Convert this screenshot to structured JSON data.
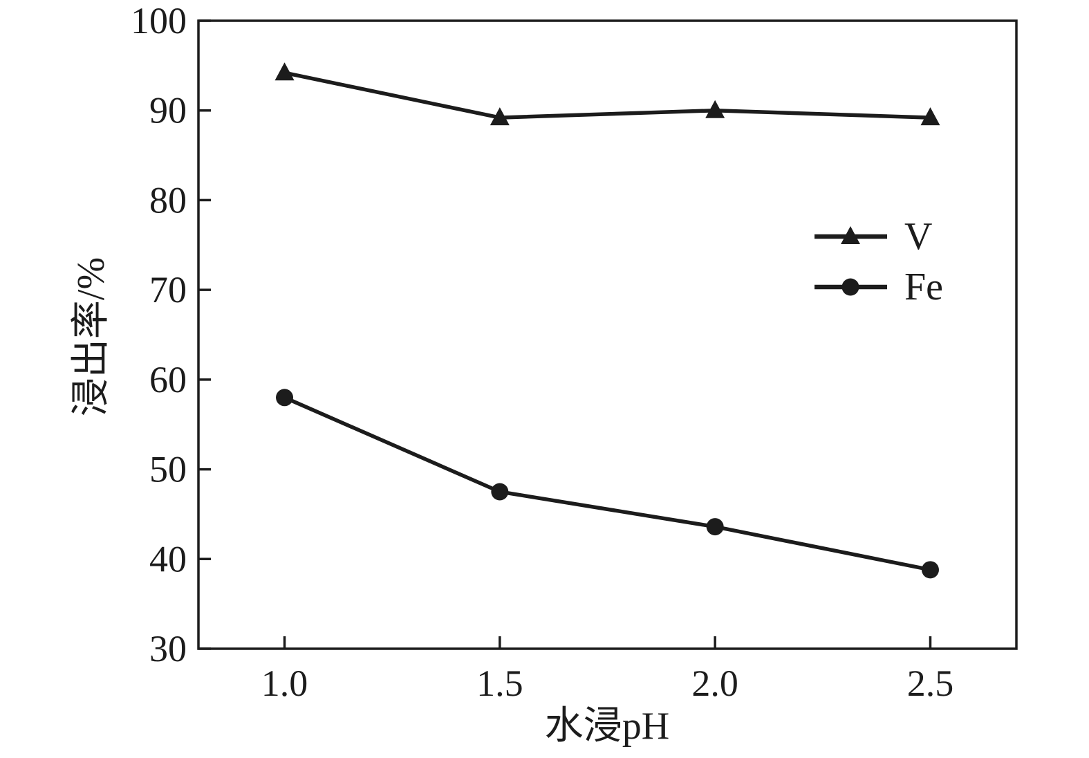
{
  "figure": {
    "background": "#ffffff",
    "ink": "#1c1c1c"
  },
  "chart_data": {
    "type": "line",
    "title": "",
    "xlabel": "水浸pH",
    "ylabel": "浸出率/%",
    "x": [
      1.0,
      1.5,
      2.0,
      2.5
    ],
    "series": [
      {
        "name": "V",
        "marker": "triangle",
        "values": [
          94.2,
          89.2,
          90.0,
          89.2
        ]
      },
      {
        "name": "Fe",
        "marker": "circle",
        "values": [
          58.0,
          47.5,
          43.6,
          38.8
        ]
      }
    ],
    "xlim": [
      0.8,
      2.7
    ],
    "ylim": [
      30,
      100
    ],
    "xtick_values": [
      1.0,
      1.5,
      2.0,
      2.5
    ],
    "xtick_labels": [
      "1.0",
      "1.5",
      "2.0",
      "2.5"
    ],
    "ytick_values": [
      30,
      40,
      50,
      60,
      70,
      80,
      90,
      100
    ],
    "ytick_labels": [
      "30",
      "40",
      "50",
      "60",
      "70",
      "80",
      "90",
      "100"
    ],
    "grid": false,
    "legend_position": "right-center"
  }
}
